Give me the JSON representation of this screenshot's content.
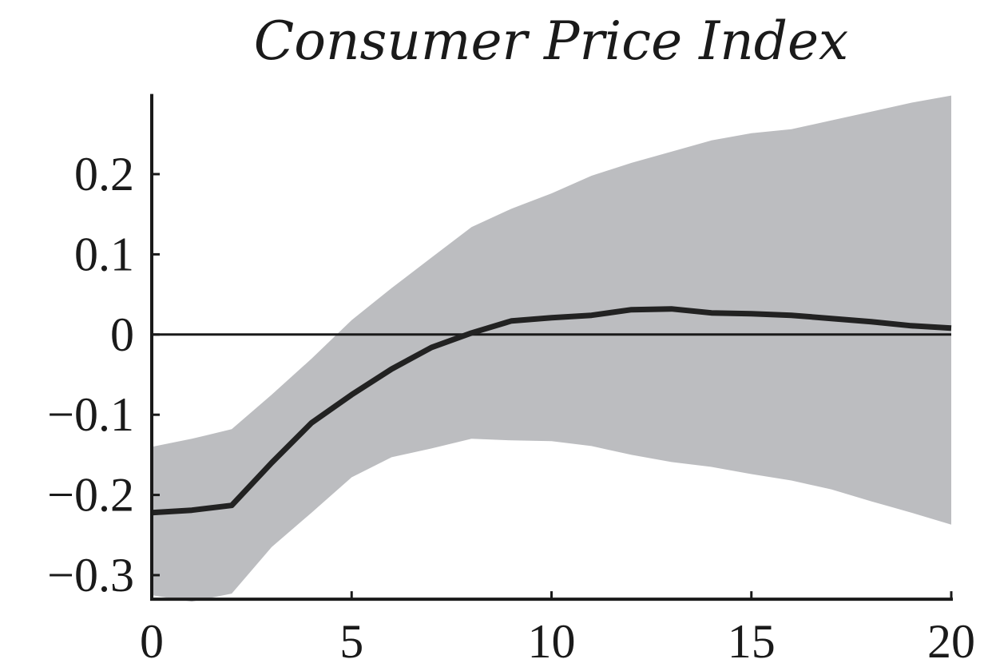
{
  "chart_data": {
    "type": "line",
    "title": "Consumer Price Index",
    "xlabel": "",
    "ylabel": "",
    "xlim": [
      0,
      20
    ],
    "ylim": [
      -0.33,
      0.3
    ],
    "x_ticks": [
      0,
      5,
      10,
      15,
      20
    ],
    "x_tick_labels": [
      "0",
      "5",
      "10",
      "15",
      "20"
    ],
    "y_ticks": [
      0.2,
      0.1,
      0,
      -0.1,
      -0.2,
      -0.3
    ],
    "y_tick_labels": [
      "0.2",
      "0.1",
      "0",
      "−0.1",
      "−0.2",
      "−0.3"
    ],
    "grid": false,
    "zero_line": true,
    "x": [
      0,
      1,
      2,
      3,
      4,
      5,
      6,
      7,
      8,
      9,
      10,
      11,
      12,
      13,
      14,
      15,
      16,
      17,
      18,
      19,
      20
    ],
    "series": [
      {
        "role": "response",
        "values": [
          -0.222,
          -0.219,
          -0.213,
          -0.16,
          -0.11,
          -0.075,
          -0.043,
          -0.016,
          0.002,
          0.017,
          0.021,
          0.024,
          0.031,
          0.032,
          0.027,
          0.026,
          0.024,
          0.02,
          0.016,
          0.011,
          0.008
        ]
      },
      {
        "role": "upper",
        "values": [
          -0.14,
          -0.13,
          -0.118,
          -0.075,
          -0.03,
          0.018,
          0.058,
          0.096,
          0.134,
          0.157,
          0.176,
          0.198,
          0.214,
          0.228,
          0.242,
          0.251,
          0.256,
          0.267,
          0.278,
          0.289,
          0.298
        ]
      },
      {
        "role": "lower",
        "values": [
          -0.325,
          -0.333,
          -0.323,
          -0.265,
          -0.222,
          -0.178,
          -0.153,
          -0.142,
          -0.13,
          -0.132,
          -0.133,
          -0.139,
          -0.15,
          -0.159,
          -0.165,
          -0.174,
          -0.182,
          -0.193,
          -0.208,
          -0.222,
          -0.237
        ]
      }
    ],
    "colors": {
      "band": "#bcbdc0",
      "line": "#222222",
      "axis": "#1a1a1a"
    }
  }
}
